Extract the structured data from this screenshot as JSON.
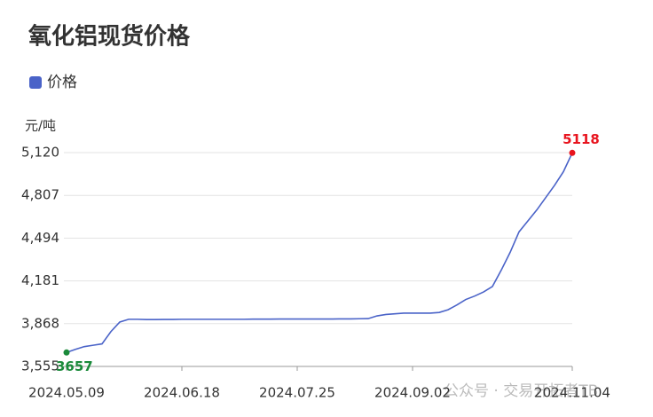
{
  "chart_data": {
    "type": "line",
    "title": "氧化铝现货价格",
    "y_label": "元/吨",
    "watermark": "公众号 · 交易开拓者TB",
    "categories": [
      "2024.05.09",
      null,
      null,
      null,
      null,
      null,
      null,
      null,
      null,
      null,
      null,
      null,
      null,
      "2024.06.18",
      null,
      null,
      null,
      null,
      null,
      null,
      null,
      null,
      null,
      null,
      null,
      null,
      "2024.07.25",
      null,
      null,
      null,
      null,
      null,
      null,
      null,
      null,
      null,
      null,
      null,
      null,
      "2024.09.02",
      null,
      null,
      null,
      null,
      null,
      null,
      null,
      null,
      null,
      null,
      null,
      null,
      null,
      null,
      null,
      null,
      null,
      "2024.11.04"
    ],
    "series": [
      {
        "name": "价格",
        "color": "#4a63c8",
        "values": [
          3657,
          3680,
          3700,
          3710,
          3720,
          3810,
          3880,
          3900,
          3900,
          3898,
          3898,
          3899,
          3899,
          3900,
          3900,
          3900,
          3900,
          3900,
          3900,
          3900,
          3900,
          3901,
          3901,
          3901,
          3902,
          3902,
          3902,
          3902,
          3902,
          3902,
          3902,
          3903,
          3903,
          3904,
          3905,
          3925,
          3935,
          3940,
          3945,
          3945,
          3945,
          3945,
          3950,
          3970,
          4005,
          4045,
          4070,
          4100,
          4140,
          4260,
          4390,
          4540,
          4620,
          4700,
          4790,
          4880,
          4980,
          5118
        ]
      }
    ],
    "ylim": [
      3555,
      5120
    ],
    "yticks": [
      {
        "value": 3555,
        "label": "3,555"
      },
      {
        "value": 3868,
        "label": "3,868"
      },
      {
        "value": 4181,
        "label": "4,181"
      },
      {
        "value": 4494,
        "label": "4,494"
      },
      {
        "value": 4807,
        "label": "4,807"
      },
      {
        "value": 5120,
        "label": "5,120"
      }
    ],
    "grid": true,
    "start_label_color": "#1a8a3a",
    "end_label_color": "#e8141e"
  }
}
